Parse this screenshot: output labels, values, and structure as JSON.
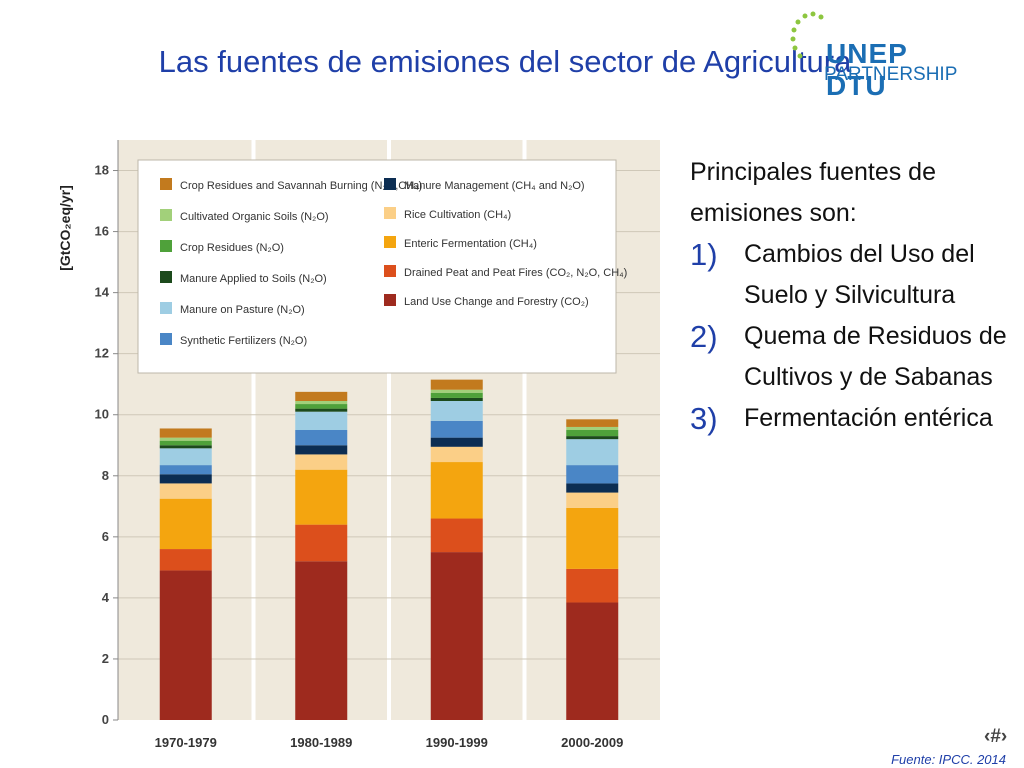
{
  "slide": {
    "title": "Las fuentes de emisiones del sector de Agricultura",
    "logo_line1": "UNEP DTU",
    "logo_line2": "PARTNERSHIP",
    "intro": "Principales fuentes de emisiones son:",
    "items": [
      {
        "num": "1)",
        "text": "Cambios del Uso del Suelo y Silvicultura"
      },
      {
        "num": "2)",
        "text": "Quema de Residuos de Cultivos y de Sabanas"
      },
      {
        "num": "3)",
        "text": "Fermentación entérica"
      }
    ],
    "source": "Fuente: IPCC. 2014",
    "slide_number": "‹#›"
  },
  "chart_data": {
    "type": "bar",
    "stacked": true,
    "ylabel": "[GtCO₂eq/yr]",
    "ylim": [
      0,
      19
    ],
    "yticks": [
      0,
      2,
      4,
      6,
      8,
      10,
      12,
      14,
      16,
      18
    ],
    "grid": true,
    "legend_position": "top",
    "categories": [
      "1970-1979",
      "1980-1989",
      "1990-1999",
      "2000-2009"
    ],
    "series": [
      {
        "name": "Land Use Change and Forestry (CO₂)",
        "color": "#9e2a1e",
        "values": [
          4.9,
          5.2,
          5.5,
          3.85
        ]
      },
      {
        "name": "Drained Peat and Peat Fires (CO₂, N₂O, CH₄)",
        "color": "#dc4f1c",
        "values": [
          0.7,
          1.2,
          1.1,
          1.1
        ]
      },
      {
        "name": "Enteric Fermentation (CH₄)",
        "color": "#f4a50f",
        "values": [
          1.65,
          1.8,
          1.85,
          2.0
        ]
      },
      {
        "name": "Rice Cultivation (CH₄)",
        "color": "#fbcf87",
        "values": [
          0.5,
          0.5,
          0.5,
          0.5
        ]
      },
      {
        "name": "Manure Management (CH₄ and N₂O)",
        "color": "#0c2d52",
        "values": [
          0.3,
          0.3,
          0.3,
          0.3
        ]
      },
      {
        "name": "Synthetic Fertilizers (N₂O)",
        "color": "#4a86c6",
        "values": [
          0.3,
          0.5,
          0.55,
          0.6
        ]
      },
      {
        "name": "Manure on Pasture (N₂O)",
        "color": "#9ecde3",
        "values": [
          0.55,
          0.6,
          0.65,
          0.85
        ]
      },
      {
        "name": "Manure Applied to Soils (N₂O)",
        "color": "#1c4a1c",
        "values": [
          0.1,
          0.1,
          0.1,
          0.1
        ]
      },
      {
        "name": "Crop Residues (N₂O)",
        "color": "#4fa13a",
        "values": [
          0.15,
          0.15,
          0.17,
          0.2
        ]
      },
      {
        "name": "Cultivated Organic Soils (N₂O)",
        "color": "#a2d07a",
        "values": [
          0.1,
          0.1,
          0.1,
          0.1
        ]
      },
      {
        "name": "Crop Residues and Savannah Burning (N₂O,CH₄)",
        "color": "#c27a1e",
        "values": [
          0.3,
          0.3,
          0.33,
          0.25
        ]
      }
    ],
    "legend_left": [
      {
        "label": "Crop Residues and Savannah Burning (N₂O,CH₄)",
        "color": "#c27a1e"
      },
      {
        "label": "Cultivated Organic Soils (N₂O)",
        "color": "#a2d07a"
      },
      {
        "label": "Crop Residues (N₂O)",
        "color": "#4fa13a"
      },
      {
        "label": "Manure Applied to Soils (N₂O)",
        "color": "#1c4a1c"
      },
      {
        "label": "Manure on Pasture (N₂O)",
        "color": "#9ecde3"
      },
      {
        "label": "Synthetic Fertilizers (N₂O)",
        "color": "#4a86c6"
      }
    ],
    "legend_right": [
      {
        "label": "Manure Management (CH₄ and N₂O)",
        "color": "#0c2d52"
      },
      {
        "label": "Rice Cultivation (CH₄)",
        "color": "#fbcf87"
      },
      {
        "label": "Enteric Fermentation (CH₄)",
        "color": "#f4a50f"
      },
      {
        "label": "Drained Peat and Peat Fires (CO₂, N₂O, CH₄)",
        "color": "#dc4f1c"
      },
      {
        "label": "Land Use Change and Forestry (CO₂)",
        "color": "#9e2a1e"
      }
    ]
  }
}
